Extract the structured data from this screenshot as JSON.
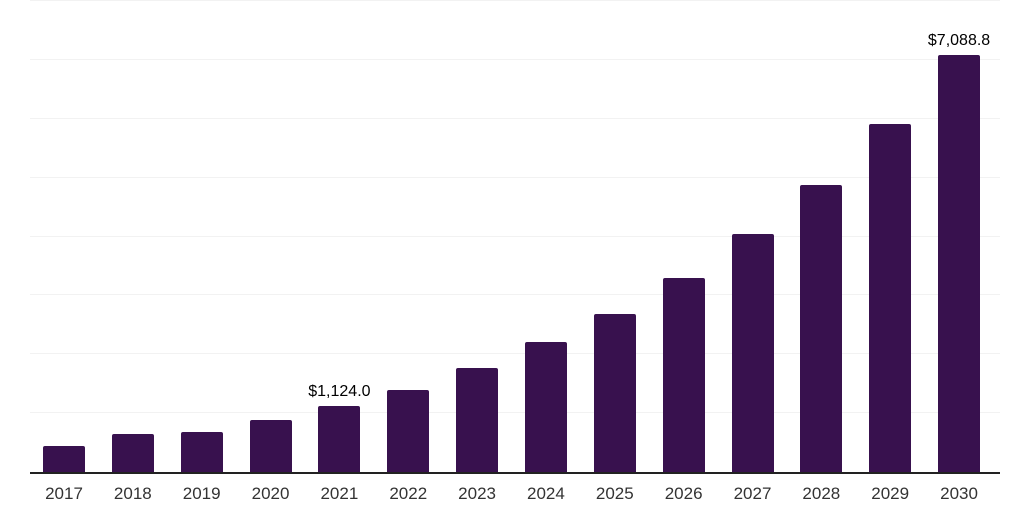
{
  "chart_data": {
    "type": "bar",
    "title": "",
    "xlabel": "",
    "ylabel": "",
    "categories": [
      "2017",
      "2018",
      "2019",
      "2020",
      "2021",
      "2022",
      "2023",
      "2024",
      "2025",
      "2026",
      "2027",
      "2028",
      "2029",
      "2030"
    ],
    "values": [
      450,
      650,
      685,
      890,
      1124.0,
      1400,
      1760,
      2200,
      2680,
      3290,
      4040,
      4870,
      5910,
      7088.8
    ],
    "data_labels": [
      "",
      "",
      "",
      "",
      "$1,124.0",
      "",
      "",
      "",
      "",
      "",
      "",
      "",
      "",
      "$7,088.8"
    ],
    "ylim": [
      0,
      8000
    ],
    "gridline_step": 1000,
    "grid": "horizontal-light",
    "legend": "none",
    "bar_color": "#38114e",
    "gridline_color": "#f2f2f2",
    "axis_line_color": "#222222",
    "tick_label_color": "#333333",
    "data_label_color": "#000000",
    "background_color": "#ffffff"
  }
}
